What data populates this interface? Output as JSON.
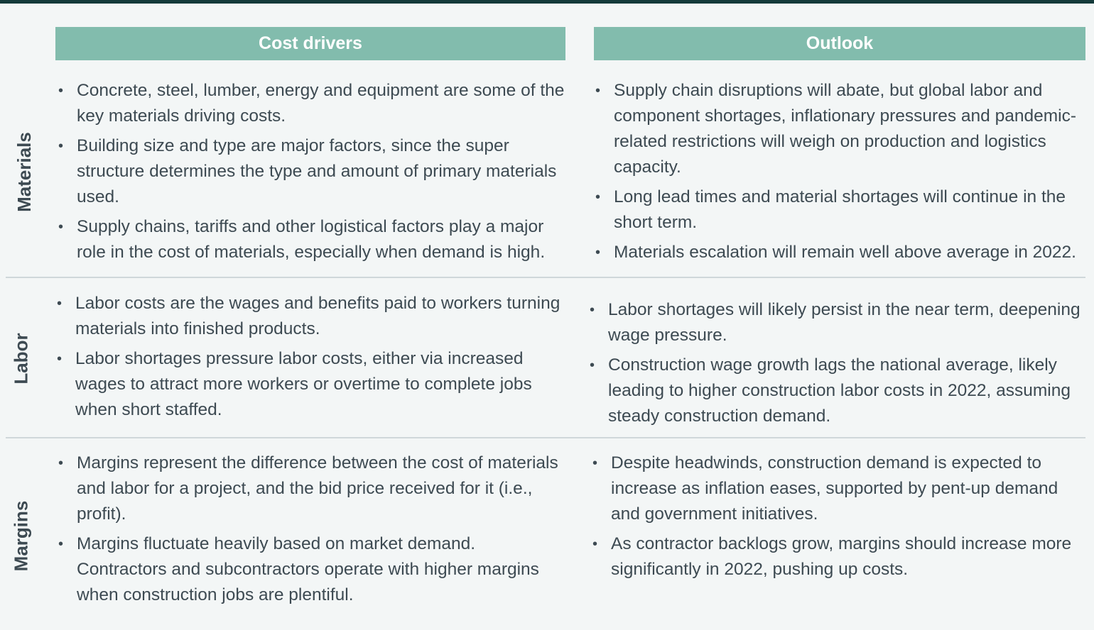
{
  "headers": {
    "cost_drivers": "Cost drivers",
    "outlook": "Outlook"
  },
  "rows": {
    "materials": {
      "label": "Materials",
      "cost": [
        "Concrete, steel, lumber, energy and equipment are some of the key materials driving costs.",
        "Building size and type are major factors, since the super structure determines the type and amount of primary materials used.",
        "Supply chains, tariffs and other logistical factors play a major role in the cost of materials, especially when demand is high."
      ],
      "outlook": [
        "Supply chain disruptions will abate, but global labor and component shortages, inflationary pressures and pandemic-related restrictions will weigh on production and logistics capacity.",
        "Long lead times and material shortages will continue in the short term.",
        "Materials escalation will remain well above average in 2022."
      ]
    },
    "labor": {
      "label": "Labor",
      "cost": [
        "Labor costs are the wages and benefits paid to workers turning materials into finished products.",
        "Labor shortages pressure labor costs, either via increased wages to attract more workers or overtime to complete jobs when short staffed."
      ],
      "outlook": [
        "Labor shortages will likely persist in the near term, deepening wage pressure.",
        "Construction wage growth lags the national average, likely leading to higher construction labor costs in 2022, assuming steady construction demand."
      ]
    },
    "margins": {
      "label": "Margins",
      "cost": [
        "Margins represent the difference between the cost of materials and labor for a project, and the bid price received for it (i.e., profit).",
        "Margins fluctuate heavily based on market demand. Contractors and subcontractors operate with higher margins when construction jobs are plentiful."
      ],
      "outlook": [
        "Despite headwinds, construction demand is expected to increase as inflation eases, supported by pent-up demand and government initiatives.",
        "As contractor backlogs grow, margins should increase more significantly in 2022, pushing up costs."
      ]
    }
  },
  "colors": {
    "header_bg": "#82bcad",
    "top_rule": "#143a3a",
    "page_bg": "#f3f6f6",
    "text": "#3d4a52"
  }
}
